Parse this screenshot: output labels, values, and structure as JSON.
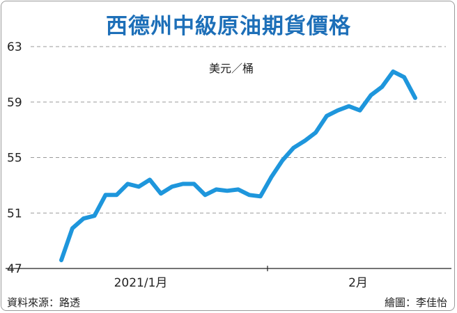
{
  "chart_data": {
    "type": "line",
    "title": "西德州中級原油期貨價格",
    "unit_label": "美元／桶",
    "ylim": [
      47,
      63
    ],
    "yticks": [
      47,
      51,
      55,
      59,
      63
    ],
    "x_tick_labels": [
      "2021/1月",
      "2月"
    ],
    "grid": true,
    "line_color": "#1e96dc",
    "series": [
      {
        "values": [
          47.6,
          49.9,
          50.6,
          50.8,
          52.3,
          52.3,
          53.1,
          52.9,
          53.4,
          52.4,
          52.9,
          53.1,
          53.1,
          52.3,
          52.7,
          52.6,
          52.7,
          52.3,
          52.2,
          53.6,
          54.8,
          55.7,
          56.2,
          56.8,
          58.0,
          58.4,
          58.7,
          58.4,
          59.5,
          60.1,
          61.2,
          60.8,
          59.3
        ]
      }
    ]
  },
  "footer": {
    "source": "資料來源：路透",
    "credit": "繪圖：李佳怡"
  }
}
